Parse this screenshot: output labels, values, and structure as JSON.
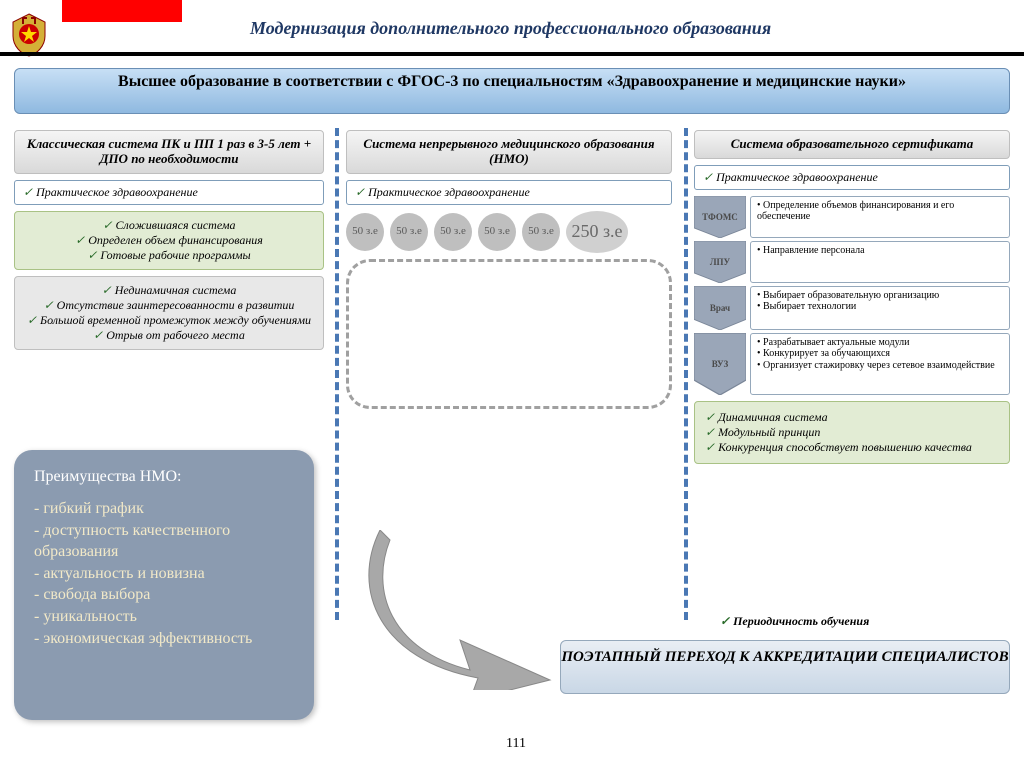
{
  "colors": {
    "accent": "#1f3864",
    "red": "#ff0000",
    "bannerTop": "#c7dff5",
    "bannerBot": "#8fb9e0",
    "dash": "#4a78b4",
    "callout": "#8b9bb0",
    "calloutText": "#f2e9c8",
    "green": "#e2ecd4",
    "greenBorder": "#a9c285",
    "gray": "#e8e8e8",
    "circ": "#bfbfbf"
  },
  "title": "Модернизация дополнительного профессионального образования",
  "banner": "Высшее образование в соответствии с ФГОС-3 по специальностям «Здравоохранение и медицинские науки»",
  "col1": {
    "head": "Классическая система ПК и ПП 1 раз в 3-5 лет  + ДПО по необходимости",
    "practice": "Практическое здравоохранение",
    "green": [
      "Сложившаяся система",
      "Определен объем финансирования",
      "Готовые рабочие программы"
    ],
    "gray": [
      "Нединамичная система",
      "Отсутствие заинтересованности в развитии",
      "Большой временной промежуток между обучениями",
      "Отрыв от рабочего места"
    ]
  },
  "col2": {
    "head": "Система непрерывного медицинского образования (НМО)",
    "practice": "Практическое здравоохранение",
    "circ": "50 з.е",
    "circCount": 5,
    "total": "250 з.е"
  },
  "col3": {
    "head": "Система образовательного сертификата",
    "practice": "Практическое здравоохранение",
    "rows": [
      {
        "tag": "ТФОМС",
        "items": [
          "Определение объемов финансирования и его обеспечение"
        ]
      },
      {
        "tag": "ЛПУ",
        "items": [
          "Направление персонала"
        ]
      },
      {
        "tag": "Врач",
        "items": [
          "Выбирает образовательную организацию",
          "Выбирает технологии"
        ]
      },
      {
        "tag": "ВУЗ",
        "items": [
          "Разрабатывает актуальные модули",
          "Конкурирует за обучающихся",
          "Организует стажировку через сетевое взаимодействие"
        ]
      }
    ],
    "green": [
      "Динамичная система",
      "Модульный принцип",
      "Конкуренция способствует повышению качества"
    ]
  },
  "callout": {
    "title": "Преимущества НМО:",
    "items": [
      "гибкий график",
      "доступность качественного образования",
      "актуальность и новизна",
      "свобода выбора",
      "уникальность",
      "экономическая эффективность"
    ]
  },
  "period": "Периодичность обучения",
  "bottom": "ПОЭТАПНЫЙ ПЕРЕХОД К АККРЕДИТАЦИИ СПЕЦИАЛИСТОВ",
  "pagenum": "111"
}
